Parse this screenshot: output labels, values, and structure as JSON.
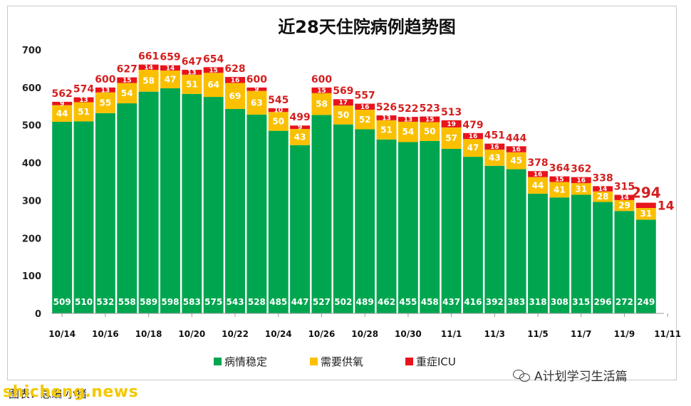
{
  "chart_data": {
    "type": "bar",
    "stacked": true,
    "title": "近28天住院病例趋势图",
    "categories": [
      "10/14",
      "10/15",
      "10/16",
      "10/17",
      "10/18",
      "10/19",
      "10/20",
      "10/21",
      "10/22",
      "10/23",
      "10/24",
      "10/25",
      "10/26",
      "10/27",
      "10/28",
      "10/29",
      "10/30",
      "10/31",
      "11/1",
      "11/2",
      "11/3",
      "11/4",
      "11/5",
      "11/6",
      "11/7",
      "11/8",
      "11/9",
      "11/10"
    ],
    "x_tick_labels": [
      "10/14",
      "10/16",
      "10/18",
      "10/20",
      "10/22",
      "10/24",
      "10/26",
      "10/28",
      "10/30",
      "11/1",
      "11/3",
      "11/5",
      "11/7",
      "11/9",
      "11/11"
    ],
    "series": [
      {
        "name": "病情稳定",
        "color": "#00a64f",
        "values": [
          509,
          510,
          532,
          558,
          589,
          598,
          583,
          575,
          543,
          528,
          485,
          447,
          527,
          502,
          489,
          462,
          455,
          458,
          437,
          416,
          392,
          383,
          318,
          308,
          315,
          296,
          272,
          249
        ]
      },
      {
        "name": "需要供氧",
        "color": "#fac000",
        "values": [
          44,
          51,
          55,
          54,
          58,
          47,
          51,
          64,
          69,
          63,
          50,
          43,
          58,
          50,
          52,
          51,
          54,
          50,
          57,
          47,
          43,
          45,
          44,
          41,
          31,
          28,
          29,
          31
        ]
      },
      {
        "name": "重症ICU",
        "color": "#e8141c",
        "values": [
          9,
          13,
          13,
          15,
          14,
          14,
          13,
          15,
          16,
          9,
          10,
          9,
          15,
          17,
          16,
          13,
          13,
          15,
          19,
          16,
          16,
          16,
          16,
          15,
          16,
          14,
          14,
          14
        ]
      }
    ],
    "totals": [
      562,
      574,
      600,
      627,
      661,
      659,
      647,
      654,
      628,
      600,
      545,
      499,
      600,
      569,
      557,
      526,
      522,
      523,
      513,
      479,
      451,
      444,
      378,
      364,
      362,
      338,
      315,
      294
    ],
    "ylim": [
      0,
      700
    ],
    "yticks": [
      0,
      100,
      200,
      300,
      400,
      500,
      600,
      700
    ],
    "xlabel": "",
    "ylabel": "",
    "grid": false,
    "legend_position": "bottom"
  },
  "caption": "图表：总编·小猪",
  "watermark_site": "shicheng.news",
  "watermark_account": "A计划学习生活篇"
}
